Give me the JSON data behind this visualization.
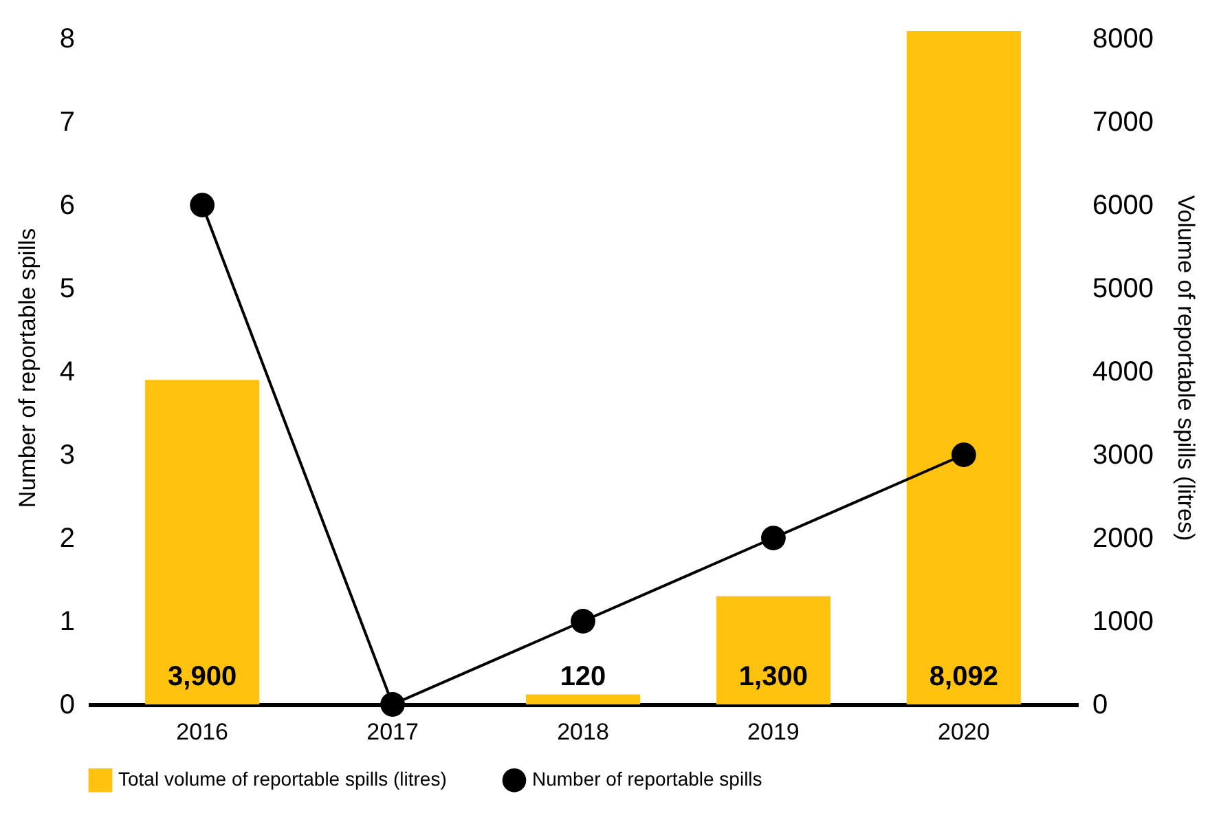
{
  "chart_data": {
    "type": "bar",
    "categories": [
      "2016",
      "2017",
      "2018",
      "2019",
      "2020"
    ],
    "ylabel": "Number of reportable spills",
    "y2label": "Volume of reportable spills (litres)",
    "ylim": [
      0,
      8.1
    ],
    "yticks": [
      0,
      1,
      2,
      3,
      4,
      5,
      6,
      7,
      8
    ],
    "y2lim": [
      0,
      8100
    ],
    "y2ticks": [
      0,
      1000,
      2000,
      3000,
      4000,
      5000,
      6000,
      7000,
      8000
    ],
    "legend": "bottom",
    "grid": false,
    "series": [
      {
        "name": "Total volume of reportable spills (litres)",
        "axis": "y2",
        "color": "#ffc20e",
        "values": [
          3900,
          0,
          120,
          1300,
          8092
        ],
        "value_labels": [
          "3,900",
          null,
          "120",
          "1,300",
          "8,092"
        ]
      },
      {
        "name": "Number of reportable spills",
        "type": "line",
        "color": "#000000",
        "values": [
          6,
          0,
          1,
          2,
          3
        ],
        "marker": "circle",
        "line_style": "solid"
      }
    ]
  }
}
